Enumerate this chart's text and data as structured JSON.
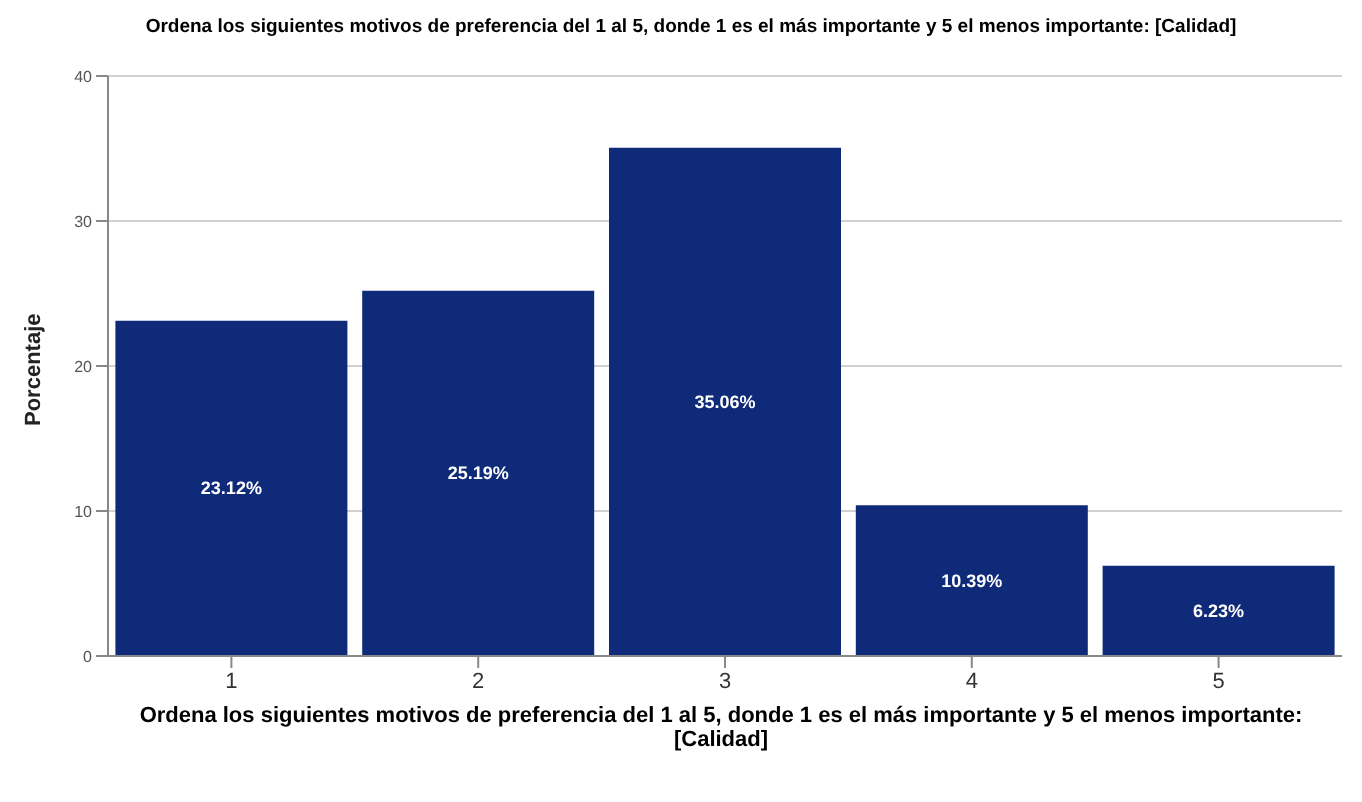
{
  "chart_data": {
    "type": "bar",
    "title": "Ordena los siguientes motivos de preferencia del 1 al 5, donde 1 es el más importante y 5 el menos importante: [Calidad]",
    "xlabel": "Ordena los siguientes motivos de preferencia del 1 al 5, donde 1 es el más importante y 5 el menos importante: [Calidad]",
    "ylabel": "Porcentaje",
    "categories": [
      "1",
      "2",
      "3",
      "4",
      "5"
    ],
    "values": [
      23.12,
      25.19,
      35.06,
      10.39,
      6.23
    ],
    "value_labels": [
      "23.12%",
      "25.19%",
      "35.06%",
      "10.39%",
      "6.23%"
    ],
    "color": "#0e2a78",
    "ylim": [
      0,
      40
    ],
    "yticks": [
      0,
      10,
      20,
      30,
      40
    ],
    "grid": "y"
  }
}
